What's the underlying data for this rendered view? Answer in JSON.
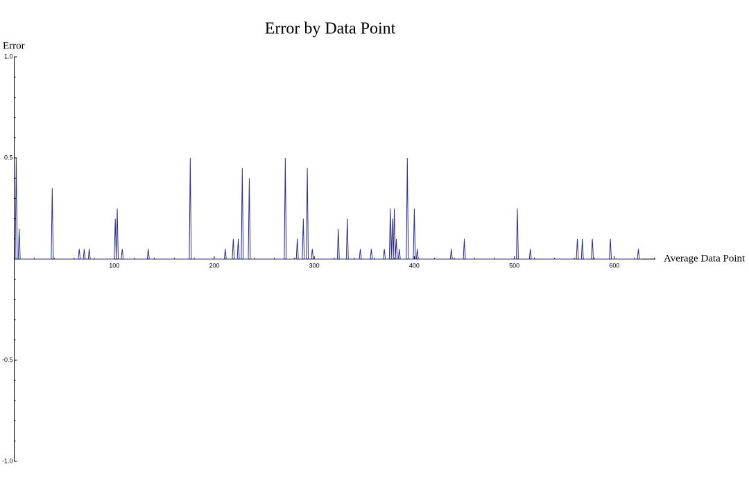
{
  "chart_data": {
    "type": "line",
    "title": "Error by Data Point",
    "x_label": "Average Data Point",
    "y_label": "Error",
    "color": "#2b2b8f",
    "xlim": [
      0,
      641
    ],
    "ylim": [
      -1,
      1
    ],
    "xticks": [
      100,
      200,
      300,
      400,
      500,
      600
    ],
    "xminorticks": [
      20,
      40,
      60,
      80,
      120,
      140,
      160,
      180,
      220,
      240,
      260,
      280,
      320,
      340,
      360,
      380,
      420,
      440,
      460,
      480,
      520,
      540,
      560,
      580,
      620,
      640
    ],
    "yticks": [
      {
        "value": -1,
        "label": "-1.0"
      },
      -0.5,
      0.5,
      {
        "value": 1,
        "label": "1.0"
      }
    ],
    "yminorticks": [
      -0.9,
      -0.8,
      -0.7,
      -0.6,
      -0.4,
      -0.3,
      -0.2,
      -0.1,
      0.1,
      0.2,
      0.3,
      0.4,
      0.6,
      0.7,
      0.8,
      0.9
    ],
    "x": [
      1,
      2,
      3,
      4,
      5,
      6,
      37,
      38,
      39,
      64,
      65,
      66,
      69,
      70,
      71,
      74,
      75,
      76,
      100,
      101,
      102,
      103,
      104,
      107,
      108,
      109,
      133,
      134,
      135,
      175,
      176,
      177,
      210,
      211,
      212,
      218,
      219,
      220,
      223,
      224,
      225,
      227,
      228,
      229,
      234,
      235,
      236,
      270,
      271,
      272,
      282,
      283,
      284,
      288,
      289,
      290,
      292,
      293,
      294,
      297,
      298,
      299,
      323,
      324,
      325,
      332,
      333,
      334,
      345,
      346,
      347,
      356,
      357,
      358,
      369,
      370,
      371,
      375,
      376,
      377,
      378,
      379,
      380,
      381,
      382,
      383,
      384,
      385,
      386,
      392,
      393,
      394,
      399,
      400,
      401,
      402,
      403,
      404,
      436,
      437,
      438,
      449,
      450,
      451,
      502,
      503,
      504,
      515,
      516,
      517,
      562,
      563,
      564,
      567,
      568,
      569,
      577,
      578,
      579,
      595,
      596,
      597,
      623,
      624,
      625,
      627
    ],
    "values": [
      0,
      0.5,
      0,
      0,
      0.15,
      0,
      0,
      0.35,
      0,
      0,
      0.05,
      0,
      0,
      0.05,
      0,
      0,
      0.05,
      0,
      0,
      0.2,
      0,
      0.25,
      0,
      0,
      0.05,
      0,
      0,
      0.05,
      0,
      0,
      0.5,
      0,
      0,
      0.05,
      0,
      0,
      0.1,
      0,
      0,
      0.1,
      0,
      0,
      0.45,
      0,
      0,
      0.4,
      0,
      0,
      0.5,
      0,
      0,
      0.1,
      0,
      0,
      0.2,
      0,
      0,
      0.45,
      0,
      0,
      0.05,
      0,
      0,
      0.15,
      0,
      0,
      0.2,
      0,
      0,
      0.05,
      0,
      0,
      0.05,
      0,
      0,
      0.05,
      0,
      0,
      0.25,
      0,
      0.2,
      0,
      0.25,
      0,
      0.1,
      0,
      0,
      0.05,
      0,
      0,
      0.5,
      0,
      0,
      0.25,
      0,
      0,
      0.05,
      0,
      0,
      0.05,
      0,
      0,
      0.1,
      0,
      0,
      0.25,
      0,
      0,
      0.05,
      0,
      0,
      0.1,
      0,
      0,
      0.1,
      0,
      0,
      0.1,
      0,
      0,
      0.1,
      0,
      0,
      0.05,
      0,
      0
    ]
  }
}
